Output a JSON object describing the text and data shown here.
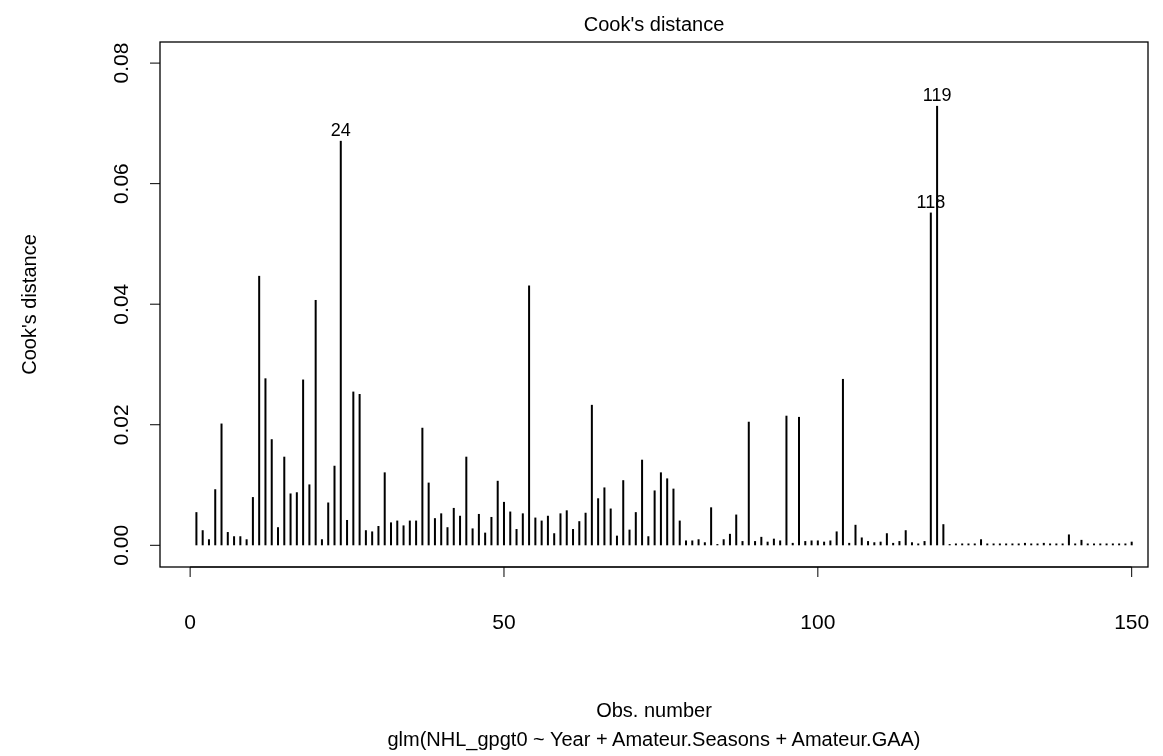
{
  "chart_data": {
    "type": "bar",
    "title": "Cook's distance",
    "subtitle": "glm(NHL_gpgt0 ~ Year + Amateur.Seasons + Amateur.GAA)",
    "xlabel": "Obs. number",
    "ylabel": "Cook's distance",
    "x": [
      1,
      2,
      3,
      4,
      5,
      6,
      7,
      8,
      9,
      10,
      11,
      12,
      13,
      14,
      15,
      16,
      17,
      18,
      19,
      20,
      21,
      22,
      23,
      24,
      25,
      26,
      27,
      28,
      29,
      30,
      31,
      32,
      33,
      34,
      35,
      36,
      37,
      38,
      39,
      40,
      41,
      42,
      43,
      44,
      45,
      46,
      47,
      48,
      49,
      50,
      51,
      52,
      53,
      54,
      55,
      56,
      57,
      58,
      59,
      60,
      61,
      62,
      63,
      64,
      65,
      66,
      67,
      68,
      69,
      70,
      71,
      72,
      73,
      74,
      75,
      76,
      77,
      78,
      79,
      80,
      81,
      82,
      83,
      84,
      85,
      86,
      87,
      88,
      89,
      90,
      91,
      92,
      93,
      94,
      95,
      96,
      97,
      98,
      99,
      100,
      101,
      102,
      103,
      104,
      105,
      106,
      107,
      108,
      109,
      110,
      111,
      112,
      113,
      114,
      115,
      116,
      117,
      118,
      119,
      120,
      121,
      122,
      123,
      124,
      125,
      126,
      127,
      128,
      129,
      130,
      131,
      132,
      133,
      134,
      135,
      136,
      137,
      138,
      139,
      140,
      141,
      142,
      143,
      144,
      145,
      146,
      147,
      148,
      149,
      150
    ],
    "values": [
      0.0055,
      0.0025,
      0.001,
      0.0093,
      0.0202,
      0.0022,
      0.0015,
      0.0015,
      0.001,
      0.008,
      0.0447,
      0.0277,
      0.0176,
      0.003,
      0.0147,
      0.0086,
      0.0088,
      0.0275,
      0.0101,
      0.0407,
      0.001,
      0.0071,
      0.0132,
      0.0671,
      0.0042,
      0.0255,
      0.0251,
      0.0025,
      0.0023,
      0.0032,
      0.0121,
      0.0038,
      0.0041,
      0.0033,
      0.0041,
      0.0041,
      0.0195,
      0.0104,
      0.0045,
      0.0053,
      0.003,
      0.0062,
      0.0049,
      0.0147,
      0.0028,
      0.0052,
      0.0021,
      0.0047,
      0.0107,
      0.0072,
      0.0056,
      0.0027,
      0.0053,
      0.0431,
      0.0046,
      0.0041,
      0.0049,
      0.002,
      0.0053,
      0.0058,
      0.0027,
      0.004,
      0.0054,
      0.0233,
      0.0078,
      0.0096,
      0.0061,
      0.0016,
      0.0108,
      0.0026,
      0.0055,
      0.0142,
      0.0015,
      0.0091,
      0.0121,
      0.0111,
      0.0094,
      0.0041,
      0.0008,
      0.0008,
      0.001,
      0.0005,
      0.0063,
      0.0002,
      0.001,
      0.0019,
      0.0051,
      0.0007,
      0.0205,
      0.0007,
      0.0014,
      0.0006,
      0.0011,
      0.0008,
      0.0215,
      0.0004,
      0.0213,
      0.0007,
      0.0008,
      0.0008,
      0.0006,
      0.0008,
      0.0023,
      0.0276,
      0.0004,
      0.0034,
      0.0013,
      0.0007,
      0.0005,
      0.0006,
      0.002,
      0.0004,
      0.0007,
      0.0025,
      0.0005,
      0.0003,
      0.0007,
      0.0552,
      0.0729,
      0.0035,
      0.0002,
      0.0003,
      0.0003,
      0.0003,
      0.0003,
      0.001,
      0.0003,
      0.0003,
      0.0003,
      0.0003,
      0.0003,
      0.0003,
      0.0004,
      0.0003,
      0.0003,
      0.0004,
      0.0003,
      0.0003,
      0.0003,
      0.0018,
      0.0003,
      0.0009,
      0.0003,
      0.0003,
      0.0003,
      0.0003,
      0.0003,
      0.0003,
      0.0003,
      0.0006
    ],
    "color": "#000000",
    "xlim": [
      -4.8,
      152.6
    ],
    "xticks": [
      0,
      50,
      100,
      150
    ],
    "ylim": [
      -0.0036,
      0.0835
    ],
    "yticks": [
      {
        "value": 0,
        "label": "0.00"
      },
      {
        "value": 0.02,
        "label": "0.02"
      },
      {
        "value": 0.04,
        "label": "0.04"
      },
      {
        "value": 0.06,
        "label": "0.06"
      },
      {
        "value": 0.08,
        "label": "0.08"
      }
    ],
    "annotations": [
      {
        "text": "24",
        "x": 24,
        "y": 0.0671
      },
      {
        "text": "118",
        "x": 118,
        "y": 0.0552
      },
      {
        "text": "119",
        "x": 119,
        "y": 0.0729
      }
    ]
  }
}
